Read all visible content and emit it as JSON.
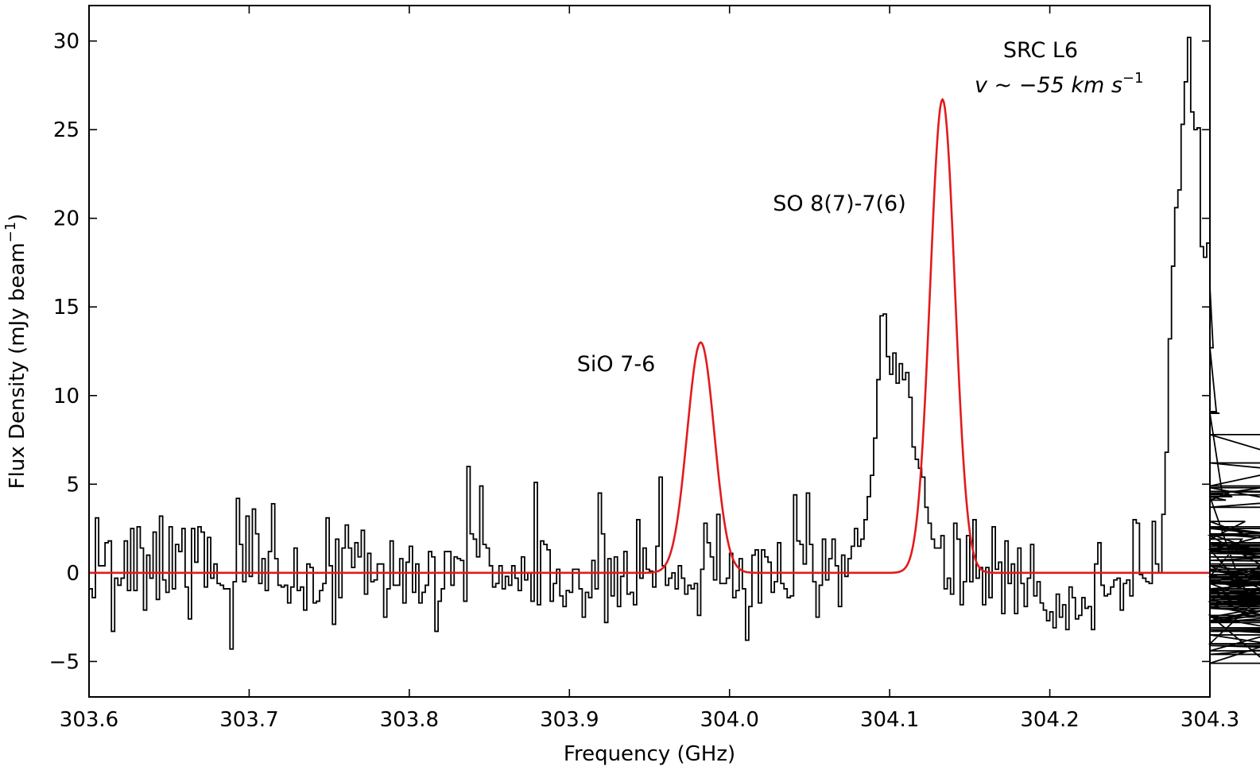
{
  "chart_data": {
    "type": "line",
    "xlabel": "Frequency (GHz)",
    "ylabel": "Flux Density (mJy beam",
    "ylabel_sup": "−1",
    "ylabel_close": ")",
    "xlim": [
      303.6,
      304.3
    ],
    "ylim": [
      -7,
      32
    ],
    "xticks": [
      303.6,
      303.7,
      303.8,
      303.9,
      304.0,
      304.1,
      304.2,
      304.3
    ],
    "xtick_labels": [
      "303.6",
      "303.7",
      "303.8",
      "303.9",
      "304.0",
      "304.1",
      "304.2",
      "304.3"
    ],
    "yticks": [
      -5,
      0,
      5,
      10,
      15,
      20,
      25,
      30
    ],
    "ytick_labels": [
      "−5",
      "0",
      "5",
      "10",
      "15",
      "20",
      "25",
      "30"
    ],
    "grid": false,
    "annotations": {
      "source": "SRC L6",
      "velocity_prefix": "v ~ −55 km s",
      "velocity_sup": "−1",
      "line1": "SiO 7-6",
      "line2": "SO 8(7)-7(6)"
    },
    "series": [
      {
        "style": "step",
        "color": "#000000",
        "x_start": 303.6,
        "x_step": 0.002,
        "values": [
          -0.9,
          -1.4,
          3.1,
          0.4,
          0.4,
          1.7,
          1.8,
          -3.3,
          -0.3,
          -0.7,
          -0.3,
          1.8,
          -1.0,
          2.5,
          -1.0,
          2.6,
          1.4,
          -2.1,
          1.0,
          -0.3,
          2.3,
          -1.5,
          3.2,
          -0.4,
          -1.1,
          2.6,
          -0.9,
          1.6,
          1.2,
          2.5,
          -0.8,
          -2.6,
          2.5,
          0.6,
          2.6,
          2.3,
          -0.8,
          2.0,
          -0.3,
          0.5,
          -0.6,
          -0.7,
          -0.9,
          -0.9,
          -4.3,
          -0.5,
          4.2,
          1.6,
          -0.5,
          3.2,
          -0.2,
          3.6,
          2.2,
          -0.6,
          0.8,
          -1.0,
          1.2,
          3.9,
          0.8,
          -0.7,
          -0.8,
          -0.7,
          -1.7,
          -0.8,
          1.4,
          -1.0,
          -0.8,
          -2.1,
          0.5,
          0.3,
          -1.7,
          -1.6,
          -1.0,
          -0.6,
          3.1,
          0.4,
          -2.9,
          1.9,
          -1.4,
          1.4,
          2.7,
          1.4,
          0.3,
          1.7,
          0.9,
          2.4,
          -1.2,
          1.1,
          -0.5,
          -0.4,
          0.5,
          0.5,
          -2.5,
          -0.9,
          1.8,
          -0.7,
          -0.7,
          0.8,
          -1.7,
          0.6,
          1.5,
          -1.1,
          0.5,
          -1.7,
          -1.1,
          -0.7,
          1.2,
          0.9,
          -3.3,
          -1.6,
          -0.9,
          1.2,
          1.2,
          -0.7,
          0.9,
          0.8,
          0.7,
          -1.6,
          6.0,
          2.2,
          1.9,
          0.9,
          4.9,
          1.6,
          1.4,
          0.4,
          -0.8,
          -0.6,
          0.4,
          -0.9,
          -0.2,
          -0.7,
          0.4,
          -0.3,
          -1.0,
          0.9,
          -0.4,
          0.0,
          -1.6,
          5.1,
          -1.8,
          1.8,
          1.6,
          1.3,
          -1.6,
          -0.6,
          0.2,
          -1.3,
          -1.9,
          -1.0,
          -1.1,
          0.2,
          0.2,
          -0.9,
          -2.5,
          -1.1,
          -1.4,
          0.7,
          -0.9,
          4.5,
          2.2,
          -2.8,
          0.8,
          -1.3,
          0.9,
          -1.9,
          -0.2,
          1.2,
          -1.2,
          -1.1,
          -1.8,
          3.0,
          -0.3,
          1.4,
          0.2,
          0.1,
          -0.8,
          1.5,
          5.4,
          0.4,
          -0.7,
          -0.3,
          0.0,
          -0.9,
          0.4,
          -0.3,
          -1.2,
          -0.7,
          -0.9,
          -0.6,
          -2.4,
          0.2,
          2.8,
          1.7,
          0.9,
          -0.4,
          3.3,
          -0.6,
          -0.6,
          -0.3,
          1.1,
          -1.4,
          -1.0,
          0.8,
          -0.9,
          -3.8,
          -1.9,
          1.0,
          1.3,
          -1.7,
          1.3,
          0.9,
          0.6,
          -1.1,
          -0.5,
          1.7,
          -0.6,
          -0.9,
          -1.4,
          -1.3,
          4.4,
          1.8,
          1.6,
          0.5,
          4.5,
          1.6,
          -0.5,
          -2.5,
          -0.7,
          1.9,
          -0.4,
          0.8,
          1.9,
          0.4,
          -1.9,
          1.0,
          -0.2,
          0.8,
          1.5,
          2.5,
          1.5,
          1.9,
          3.0,
          4.3,
          5.5,
          7.6,
          10.9,
          14.5,
          14.6,
          12.2,
          11.2,
          12.4,
          10.7,
          11.8,
          10.9,
          11.3,
          9.9,
          7.1,
          6.4,
          5.9,
          5.4,
          3.7,
          2.8,
          1.9,
          1.4,
          1.4,
          2.1,
          -0.9,
          -0.3,
          -1.2,
          2.8,
          1.9,
          -1.8,
          -0.5,
          2.1,
          -0.5,
          3.0,
          -0.3,
          0.3,
          -1.8,
          0.3,
          -1.4,
          2.6,
          0.2,
          0.6,
          -2.3,
          1.8,
          -0.6,
          0.5,
          -2.3,
          1.4,
          -0.6,
          -1.9,
          -0.3,
          1.6,
          -1.3,
          -0.5,
          -1.7,
          -2.1,
          -2.7,
          -2.2,
          -3.1,
          -1.2,
          -2.5,
          -1.8,
          -3.2,
          -0.8,
          -1.4,
          -2.6,
          -2.4,
          -1.4,
          -2.0,
          -1.9,
          -3.2,
          0.5,
          1.7,
          -0.7,
          -1.3,
          -1.2,
          -0.8,
          -0.4,
          -0.3,
          -2.1,
          -0.6,
          -0.4,
          -1.3,
          3.0,
          2.8,
          -0.1,
          -0.3,
          -0.5,
          -0.6,
          2.9,
          0.5,
          0.0,
          3.3,
          6.8,
          13.2,
          17.3,
          20.6,
          21.6,
          25.3,
          27.7,
          30.2,
          26.0,
          25.0,
          25.1,
          18.4,
          17.8,
          18.6,
          16.1,
          12.7,
          9.1,
          9.0,
          4.3,
          4.1,
          4.5,
          4.3,
          0.2,
          -0.2,
          1.9,
          2.9,
          2.1,
          2.2,
          1.3,
          -1.7,
          -1.9,
          -2.4,
          -5.1,
          -4.0,
          -0.6,
          -2.0,
          -0.4,
          -1.5,
          -2.8,
          -1.8,
          -1.3,
          -1.6,
          -1.6,
          2.1,
          -1.0,
          -2.5,
          -3.5,
          -4.4,
          -2.7,
          -1.4,
          -1.2,
          1.3,
          0.4,
          -2.8,
          -1.7,
          -1.8,
          -1.2,
          -0.5,
          -0.6,
          0.1,
          -0.3,
          -0.1,
          -2.0,
          -2.5,
          -0.9,
          -0.2,
          -1.8,
          -0.5,
          -0.6,
          2.5,
          1.5,
          1.7,
          0.2,
          0.4,
          -1.1,
          -1.4,
          -0.6,
          -1.0,
          1.1,
          0.9,
          0.7,
          1.3,
          2.6,
          1.2,
          1.3,
          4.6,
          4.4,
          6.2,
          4.9,
          7.8,
          3.7,
          4.8,
          2.2,
          1.1,
          1.6,
          0.1,
          -1.3,
          -3.1,
          -3.2,
          -4.1,
          -4.6,
          -3.3,
          -2.8,
          -1.6,
          1.4,
          0.7,
          0.5
        ]
      },
      {
        "style": "line",
        "color": "#e31a1c",
        "model": "gaussian",
        "components": [
          {
            "amplitude": 13.0,
            "center": 303.982,
            "sigma": 0.0085
          },
          {
            "amplitude": 26.7,
            "center": 304.133,
            "sigma": 0.0077
          }
        ],
        "baseline": 0
      }
    ]
  }
}
